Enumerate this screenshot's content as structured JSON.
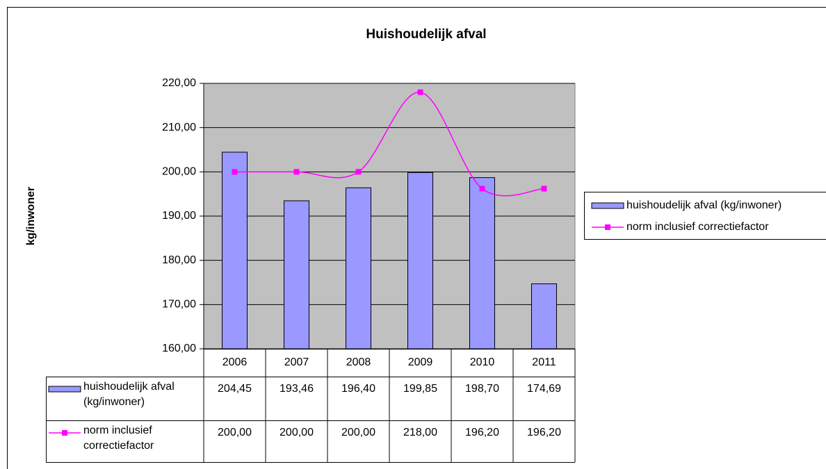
{
  "chart_data": {
    "type": "bar",
    "title": "Huishoudelijk afval",
    "y_label": "kg/inwoner",
    "categories": [
      "2006",
      "2007",
      "2008",
      "2009",
      "2010",
      "2011"
    ],
    "series": [
      {
        "name": "huishoudelijk afval (kg/inwoner)",
        "type": "bar",
        "color": "#9999ff",
        "values": [
          204.45,
          193.46,
          196.4,
          199.85,
          198.7,
          174.69
        ],
        "value_labels": [
          "204,45",
          "193,46",
          "196,40",
          "199,85",
          "198,70",
          "174,69"
        ]
      },
      {
        "name": "norm inclusief correctiefactor",
        "type": "line",
        "color": "#ff00ff",
        "smooth": true,
        "values": [
          200.0,
          200.0,
          200.0,
          218.0,
          196.2,
          196.2
        ],
        "value_labels": [
          "200,00",
          "200,00",
          "200,00",
          "218,00",
          "196,20",
          "196,20"
        ]
      }
    ],
    "ylim": [
      160,
      220
    ],
    "yticks": [
      {
        "value": 160,
        "label": "160,00"
      },
      {
        "value": 170,
        "label": "170,00"
      },
      {
        "value": 180,
        "label": "180,00"
      },
      {
        "value": 190,
        "label": "190,00"
      },
      {
        "value": 200,
        "label": "200,00"
      },
      {
        "value": 210,
        "label": "210,00"
      },
      {
        "value": 220,
        "label": "220,00"
      }
    ],
    "grid": true,
    "legend": "right",
    "plot_background": "#c0c0c0",
    "data_table": true
  }
}
